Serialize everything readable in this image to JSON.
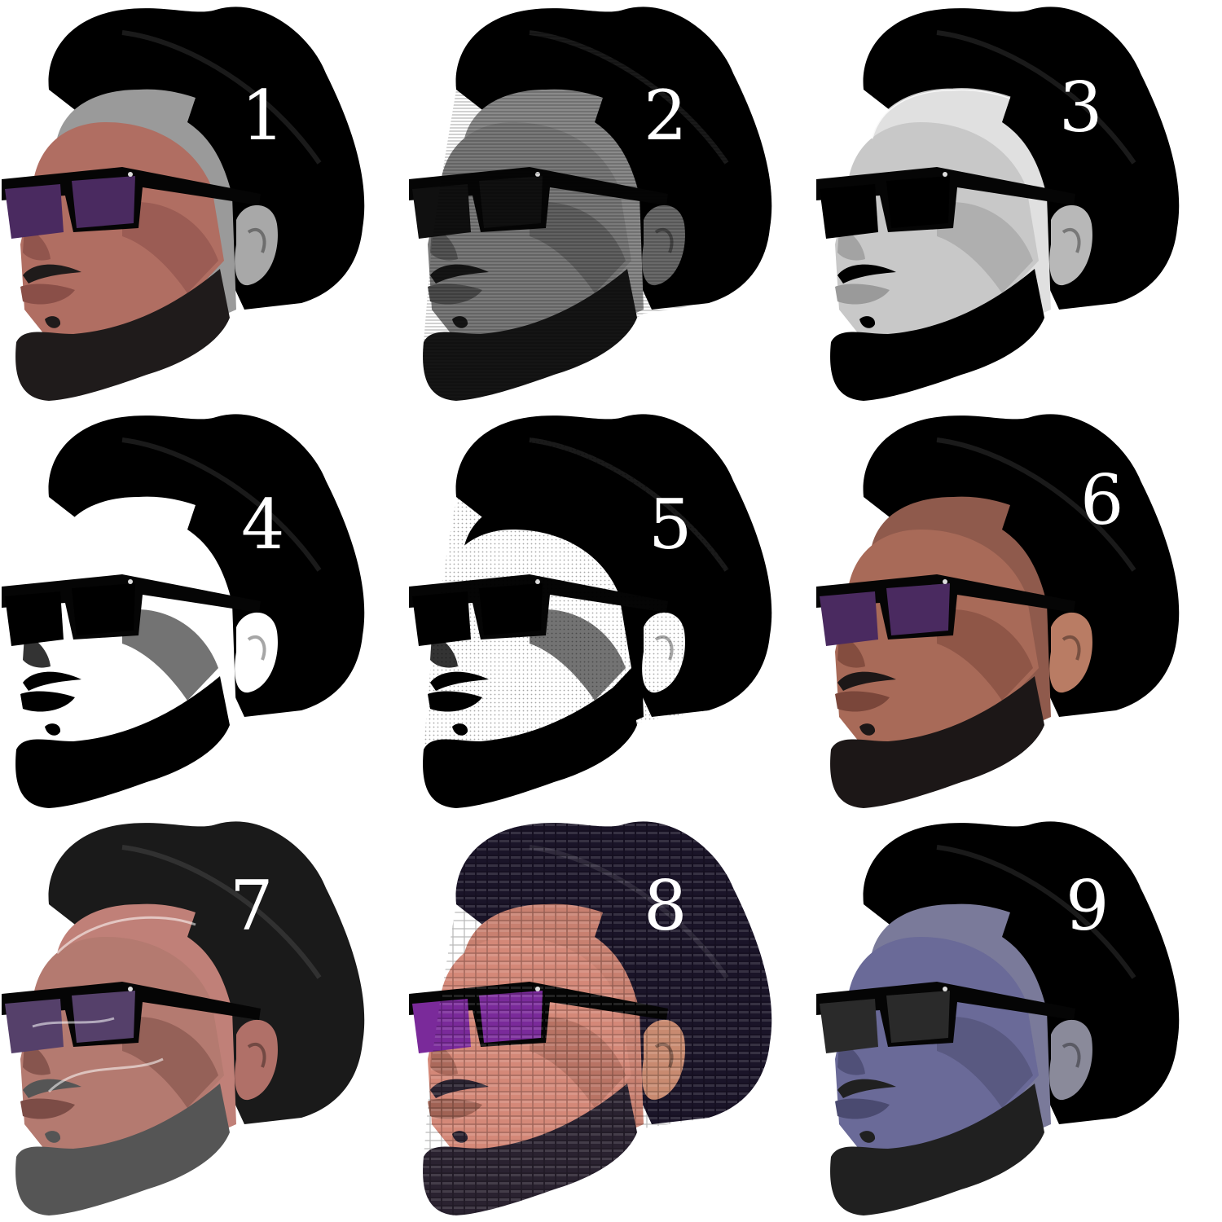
{
  "panels": [
    {
      "number": "1",
      "style": "color-cartoon",
      "skin": "#b06e62",
      "skin_shadow": "#8a4f48",
      "head_bald": "#9a9a9a",
      "ear": "#a8a8a8",
      "lens": "#4a2a60",
      "beard": "#1f1b1b",
      "hat": "#000000"
    },
    {
      "number": "2",
      "style": "grayscale-scanline",
      "skin": "#7a7a7a",
      "skin_shadow": "#4c4c4c",
      "head_bald": "#8a8a8a",
      "ear": "#6a6a6a",
      "lens": "#101010",
      "beard": "#151515",
      "hat": "#000000"
    },
    {
      "number": "3",
      "style": "embossed-gray",
      "skin": "#c8c8c8",
      "skin_shadow": "#9a9a9a",
      "head_bald": "#e0e0e0",
      "ear": "#b8b8b8",
      "lens": "#000000",
      "beard": "#000000",
      "hat": "#000000"
    },
    {
      "number": "4",
      "style": "threshold-bw",
      "skin": "#ffffff",
      "skin_shadow": "#000000",
      "head_bald": "#ffffff",
      "ear": "#ffffff",
      "lens": "#000000",
      "beard": "#000000",
      "hat": "#000000"
    },
    {
      "number": "5",
      "style": "halftone-bw",
      "skin": "#ffffff",
      "skin_shadow": "#000000",
      "head_bald": "#000000",
      "ear": "#ffffff",
      "lens": "#000000",
      "beard": "#000000",
      "hat": "#000000"
    },
    {
      "number": "6",
      "style": "color-cartoon",
      "skin": "#a86a58",
      "skin_shadow": "#7a463a",
      "head_bald": "#8f5a4c",
      "ear": "#b97c64",
      "lens": "#4a2a60",
      "beard": "#1c1717",
      "hat": "#000000"
    },
    {
      "number": "7",
      "style": "plastic-wrap",
      "skin": "#b47a70",
      "skin_shadow": "#7c4c46",
      "head_bald": "#c08078",
      "ear": "#b07068",
      "lens": "#55406a",
      "beard": "#555555",
      "hat": "#1a1a1a"
    },
    {
      "number": "8",
      "style": "tile-mosaic",
      "skin": "#d48878",
      "skin_shadow": "#a06254",
      "head_bald": "#c88070",
      "ear": "#c88a70",
      "lens": "#7a2a9a",
      "beard": "#2a2230",
      "hat": "#1a1428"
    },
    {
      "number": "9",
      "style": "blue-tint",
      "skin": "#6a6a98",
      "skin_shadow": "#4a4a70",
      "head_bald": "#7a7a9a",
      "ear": "#8a8a9a",
      "lens": "#2a2a2a",
      "beard": "#202020",
      "hat": "#000000"
    }
  ]
}
